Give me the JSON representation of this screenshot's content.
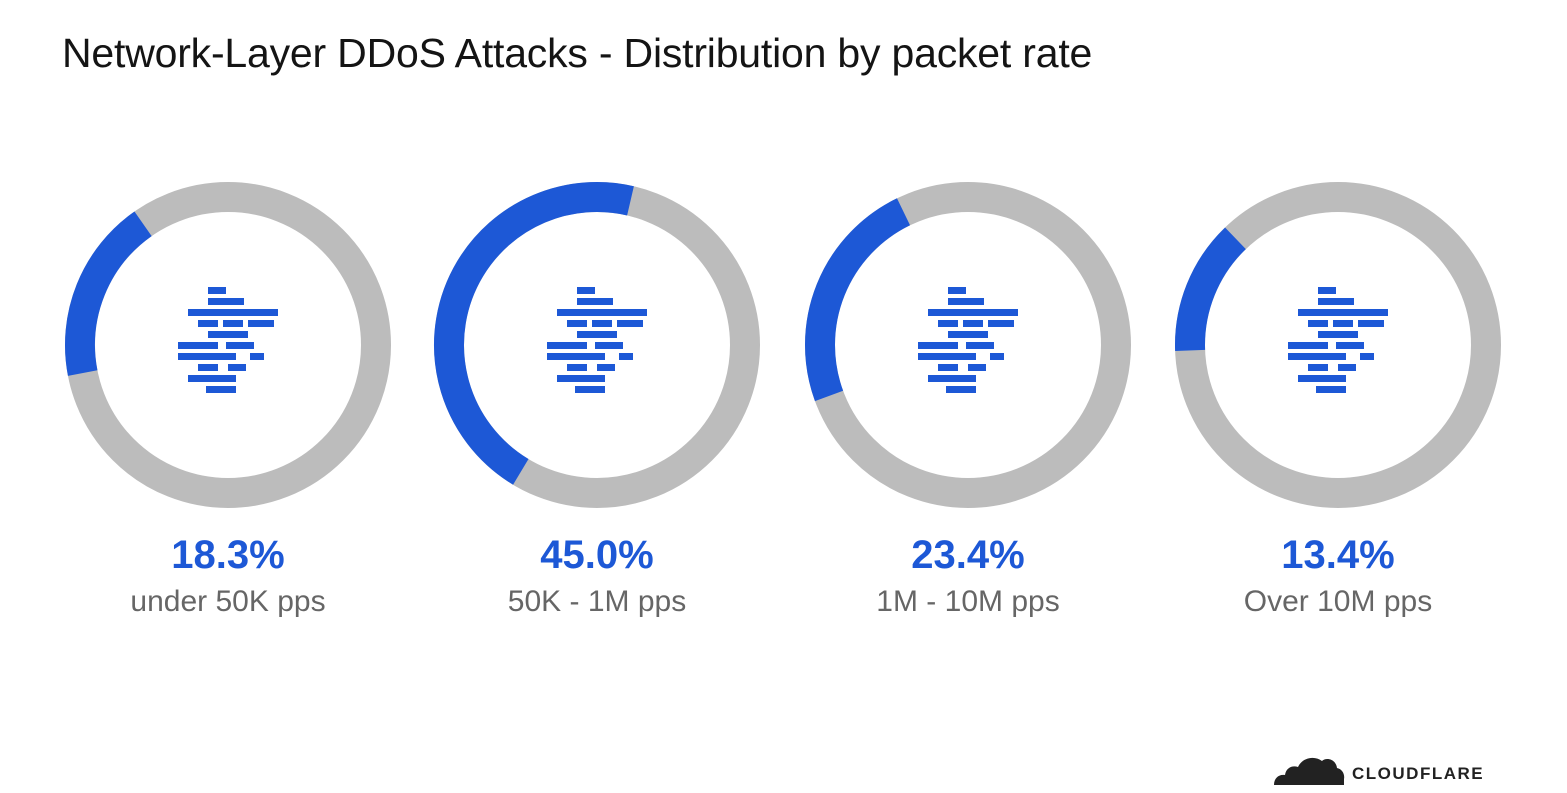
{
  "chart_data": {
    "type": "pie",
    "title": "Network-Layer DDoS Attacks - Distribution by packet rate",
    "categories": [
      "under 50K pps",
      "50K - 1M pps",
      "1M - 10M pps",
      "Over 10M pps"
    ],
    "values": [
      18.3,
      45.0,
      23.4,
      13.4
    ],
    "value_labels": [
      "18.3%",
      "45.0%",
      "23.4%",
      "13.4%"
    ],
    "unit": "%",
    "style": "donut-per-category",
    "legend": "none"
  },
  "colors": {
    "accent": "#1d58d6",
    "track": "#bcbcbc",
    "category_text": "#666666",
    "title_text": "#141414"
  },
  "icons": {
    "center": "network-bricks-icon",
    "brand": "cloudflare-cloud-icon"
  },
  "brand": {
    "name": "CLOUDFLARE"
  }
}
